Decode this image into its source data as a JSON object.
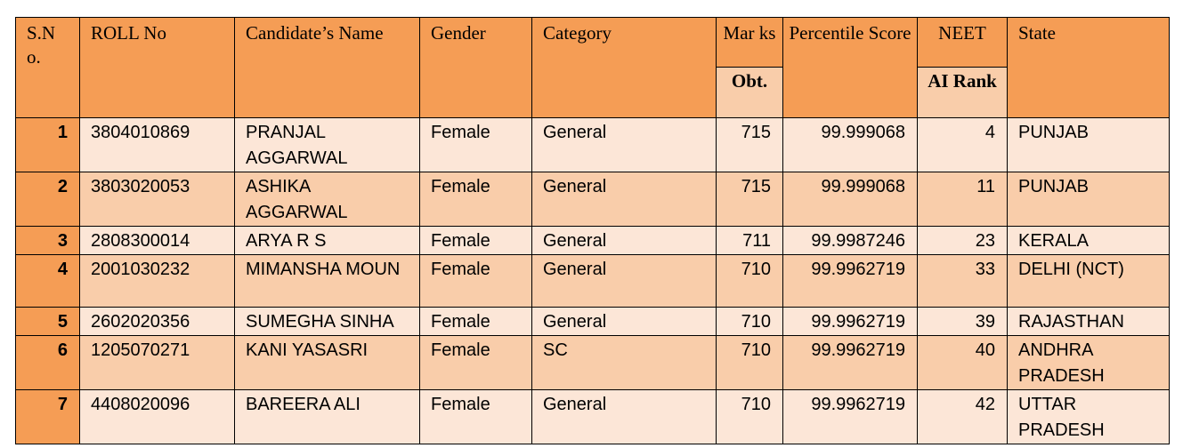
{
  "headers": {
    "sno": "S.N o.",
    "roll": "ROLL No",
    "name": "Candidate’s Name",
    "gender": "Gender",
    "category": "Category",
    "marks_top": "Mar ks",
    "marks_sub": "Obt.",
    "percentile": "Percentile Score",
    "neet_top": "NEET",
    "neet_sub": "AI Rank",
    "state": "State"
  },
  "rows": [
    {
      "sno": "1",
      "roll": "3804010869",
      "name": "PRANJAL AGGARWAL",
      "gender": "Female",
      "category": "General",
      "marks": "715",
      "percentile": "99.999068",
      "rank": "4",
      "state": "PUNJAB"
    },
    {
      "sno": "2",
      "roll": "3803020053",
      "name": "ASHIKA AGGARWAL",
      "gender": "Female",
      "category": "General",
      "marks": "715",
      "percentile": "99.999068",
      "rank": "11",
      "state": "PUNJAB"
    },
    {
      "sno": "3",
      "roll": "2808300014",
      "name": "ARYA R S",
      "gender": "Female",
      "category": "General",
      "marks": "711",
      "percentile": "99.9987246",
      "rank": "23",
      "state": "KERALA"
    },
    {
      "sno": "4",
      "roll": "2001030232",
      "name": "MIMANSHA MOUN",
      "gender": "Female",
      "category": "General",
      "marks": "710",
      "percentile": "99.9962719",
      "rank": "33",
      "state": "DELHI (NCT)"
    },
    {
      "sno": "5",
      "roll": "2602020356",
      "name": "SUMEGHA SINHA",
      "gender": "Female",
      "category": "General",
      "marks": "710",
      "percentile": "99.9962719",
      "rank": "39",
      "state": "RAJASTHAN"
    },
    {
      "sno": "6",
      "roll": "1205070271",
      "name": "KANI YASASRI",
      "gender": "Female",
      "category": "SC",
      "marks": "710",
      "percentile": "99.9962719",
      "rank": "40",
      "state": "ANDHRA PRADESH"
    },
    {
      "sno": "7",
      "roll": "4408020096",
      "name": "BAREERA ALI",
      "gender": "Female",
      "category": "General",
      "marks": "710",
      "percentile": "99.9962719",
      "rank": "42",
      "state": "UTTAR PRADESH"
    }
  ]
}
